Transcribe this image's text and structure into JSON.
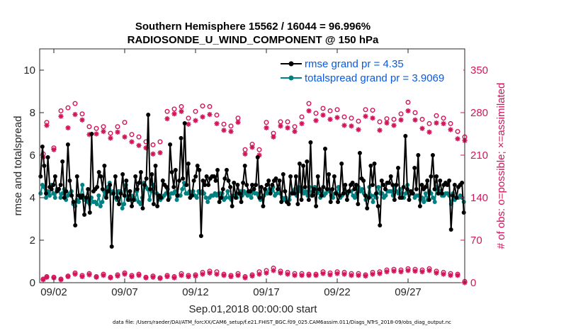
{
  "chart_data": {
    "type": "line",
    "title": "Southern Hemisphere 15562 / 16044 = 96.996%",
    "subtitle": "RADIOSONDE_U_WIND_COMPONENT @ 150 hPa",
    "xlabel": "Sep.01,2018 00:00:00 start",
    "ylabel": "rmse and totalspread",
    "y2label": "# of obs: o=possible; ×=assimilated",
    "footnote": "data file: /Users/raeder/DAI/ATM_forcXX/CAM6_setup/f.e21.FHIST_BGC.f09_025.CAM6assim.011/Diags_NTrS_2018-09/obs_diag_output.nc",
    "xlim": [
      1,
      31
    ],
    "ylim": [
      0,
      11
    ],
    "y2lim": [
      0,
      385
    ],
    "xticks": [
      2,
      7,
      12,
      17,
      22,
      27
    ],
    "xtick_labels": [
      "09/02",
      "09/07",
      "09/12",
      "09/17",
      "09/22",
      "09/27"
    ],
    "yticks": [
      0,
      2,
      4,
      6,
      8,
      10
    ],
    "ytick_labels": [
      "0",
      "2",
      "4",
      "6",
      "8",
      "10"
    ],
    "y2ticks": [
      0,
      70,
      140,
      210,
      280,
      350
    ],
    "y2tick_labels": [
      "0",
      "70",
      "140",
      "210",
      "280",
      "350"
    ],
    "legend_position": "top-right",
    "colors": {
      "rmse": "#000000",
      "spread": "#008080",
      "obs": "#d4145a"
    },
    "series": [
      {
        "name": "rmse grand pr = 4.35",
        "axis": "left",
        "values": [
          5.0,
          6.4,
          5.5,
          4.2,
          5.9,
          4.5,
          4.4,
          4.6,
          5.0,
          4.3,
          4.4,
          4.6,
          5.7,
          4.0,
          4.3,
          6.5,
          4.8,
          4.1,
          3.8,
          2.7,
          5.0,
          4.1,
          4.0,
          4.1,
          3.2,
          4.0,
          4.4,
          3.3,
          7.0,
          4.3,
          4.4,
          4.5,
          5.2,
          5.0,
          4.4,
          5.5,
          4.0,
          4.3,
          4.6,
          1.7,
          4.2,
          5.0,
          4.0,
          3.7,
          4.2,
          5.1,
          4.1,
          4.8,
          3.9,
          4.3,
          3.6,
          3.9,
          5.0,
          4.4,
          4.7,
          5.2,
          3.5,
          4.6,
          4.9,
          7.9,
          4.4,
          5.1,
          3.7,
          5.5,
          3.6,
          4.1,
          4.0,
          4.8,
          4.6,
          4.5,
          3.9,
          6.5,
          5.2,
          4.5,
          5.3,
          4.1,
          4.8,
          6.8,
          4.9,
          7.5,
          4.6,
          5.6,
          4.0,
          4.1,
          4.8,
          5.0,
          5.5,
          5.3,
          2.2,
          4.8,
          4.6,
          5.0,
          4.6,
          4.9,
          5.0,
          5.0,
          4.8,
          5.3,
          3.8,
          4.0,
          4.4,
          4.9,
          5.3,
          4.8,
          4.5,
          3.6,
          4.7,
          4.0,
          4.6,
          4.2,
          3.8,
          4.7,
          5.5,
          4.6,
          4.3,
          4.3,
          4.6,
          4.4,
          4.6,
          5.9,
          4.0,
          4.5,
          3.6,
          4.4,
          4.6,
          4.8,
          4.2,
          4.6,
          4.8,
          4.9,
          4.4,
          4.8,
          3.8,
          5.1,
          4.3,
          3.8,
          3.7,
          5.0,
          4.2,
          4.2,
          5.0,
          3.7,
          5.6,
          3.9,
          5.5,
          4.5,
          5.7,
          3.9,
          6.6,
          4.1,
          4.4,
          3.6,
          5.0,
          4.4,
          4.1,
          4.5,
          6.3,
          4.4,
          5.1,
          3.8,
          4.4,
          5.0,
          4.2,
          3.8,
          4.1,
          5.6,
          4.2,
          4.6,
          3.9,
          4.3,
          4.6,
          4.7,
          4.4,
          4.6,
          3.7,
          6.1,
          4.9,
          4.8,
          4.1,
          3.5,
          4.0,
          5.5,
          4.6,
          5.6,
          4.2,
          3.6,
          2.7,
          4.8,
          4.6,
          4.4,
          4.7,
          4.7,
          5.0,
          4.6,
          3.9,
          4.6,
          5.4,
          4.0,
          4.0,
          4.5,
          6.9,
          4.4,
          3.9,
          4.3,
          4.2,
          5.4,
          4.4,
          6.0,
          3.6,
          4.6,
          4.4,
          4.5,
          4.8,
          3.9,
          5.0,
          6.0,
          4.4,
          5.0,
          4.2,
          4.8,
          4.2,
          4.6,
          4.7,
          4.6,
          4.8,
          2.5,
          4.1,
          4.6,
          4.0,
          4.5,
          4.6,
          4.7,
          3.3
        ]
      },
      {
        "name": "totalspread grand pr = 3.9069",
        "axis": "left",
        "values": [
          4.2,
          4.6,
          4.5,
          4.0,
          4.3,
          4.1,
          4.6,
          4.2,
          4.0,
          4.4,
          4.4,
          4.0,
          4.2,
          4.4,
          3.9,
          4.1,
          4.2,
          4.3,
          3.7,
          3.6,
          3.9,
          3.8,
          4.1,
          4.6,
          3.9,
          3.9,
          3.8,
          3.7,
          4.0,
          3.8,
          3.8,
          3.7,
          4.1,
          3.6,
          3.8,
          4.3,
          4.1,
          4.5,
          4.7,
          4.2,
          4.3,
          4.0,
          3.9,
          4.3,
          4.3,
          3.5,
          3.7,
          4.6,
          4.0,
          3.9,
          4.1,
          4.0,
          3.9,
          4.3,
          3.8,
          3.7,
          4.0,
          4.7,
          4.5,
          4.4,
          3.9,
          4.3,
          4.6,
          4.5,
          4.2,
          4.0,
          3.9,
          4.0,
          4.1,
          4.2,
          4.4,
          4.0,
          4.2,
          4.2,
          4.3,
          3.9,
          4.1,
          4.1,
          4.4,
          4.7,
          4.2,
          4.2,
          4.3,
          4.2,
          4.3,
          4.1,
          4.0,
          4.3,
          4.2,
          4.3,
          4.2,
          4.0,
          3.8,
          4.0,
          4.1,
          4.1,
          4.2,
          4.1,
          4.2,
          4.2,
          4.2,
          3.9,
          4.0,
          4.3,
          4.0,
          3.9,
          4.1,
          4.1,
          4.0,
          4.2,
          4.3,
          4.1,
          4.3,
          4.2,
          4.1,
          4.2,
          4.0,
          4.3,
          4.2,
          4.2,
          4.1,
          3.9,
          4.0,
          4.1,
          4.3,
          4.2,
          4.4,
          4.3,
          4.5,
          4.1,
          4.2,
          4.4,
          4.2,
          4.0,
          3.9,
          4.0,
          3.8,
          3.9,
          4.2,
          4.3,
          4.4,
          4.1,
          4.5,
          4.3,
          4.4,
          4.2,
          4.3,
          4.1,
          4.5,
          4.1,
          4.3,
          4.5,
          4.2,
          4.3,
          4.0,
          4.3,
          4.1,
          4.2,
          4.4,
          4.3,
          4.1,
          4.0,
          4.2,
          4.2,
          4.5,
          4.0,
          4.1,
          4.2,
          4.3,
          4.2,
          4.3,
          4.3,
          4.1,
          4.0,
          4.2,
          4.5,
          4.3,
          4.4,
          4.2,
          3.9,
          4.0,
          4.5,
          4.1,
          3.8,
          4.1,
          4.0,
          4.5,
          4.2,
          4.2,
          4.0,
          4.1,
          4.3,
          4.3,
          4.3,
          4.1,
          4.5,
          4.3,
          4.2,
          4.4,
          4.2,
          4.0,
          4.2,
          4.6,
          4.2,
          4.2,
          4.2,
          4.0,
          4.1,
          4.1,
          3.9,
          4.0,
          3.8,
          4.2,
          3.9,
          4.3,
          4.2,
          4.0,
          3.8,
          4.5,
          4.2,
          4.3,
          4.1,
          4.1,
          4.2,
          4.2,
          4.1,
          3.7,
          4.2,
          3.9,
          4.0,
          4.0,
          4.1,
          4.0,
          3.8
        ]
      }
    ],
    "obs_days": [
      1.25,
      1.5,
      2.0,
      2.5,
      3.0,
      3.5,
      4.0,
      4.5,
      5.0,
      5.5,
      6.0,
      6.5,
      7.0,
      7.5,
      8.0,
      8.5,
      9.0,
      9.5,
      10.0,
      10.5,
      11.0,
      11.5,
      12.0,
      12.5,
      13.0,
      13.5,
      14.0,
      14.5,
      15.0,
      15.5,
      16.0,
      16.5,
      17.0,
      17.5,
      18.0,
      18.5,
      19.0,
      19.5,
      20.0,
      20.5,
      21.0,
      21.5,
      22.0,
      22.5,
      23.0,
      23.5,
      24.0,
      24.5,
      25.0,
      25.5,
      26.0,
      26.5,
      27.0,
      27.5,
      28.0,
      28.5,
      29.0,
      29.5,
      30.0,
      30.5,
      31.0
    ],
    "obs_possible_upper": [
      212,
      264,
      222,
      283,
      288,
      295,
      278,
      257,
      254,
      257,
      246,
      257,
      264,
      244,
      240,
      232,
      227,
      232,
      282,
      286,
      290,
      271,
      282,
      291,
      290,
      276,
      261,
      258,
      271,
      219,
      228,
      219,
      264,
      246,
      265,
      265,
      257,
      273,
      295,
      279,
      287,
      283,
      285,
      273,
      271,
      266,
      285,
      284,
      265,
      270,
      269,
      278,
      297,
      280,
      269,
      262,
      275,
      271,
      262,
      249,
      240
    ],
    "obs_assim_upper": [
      207,
      259,
      219,
      274,
      255,
      277,
      268,
      244,
      245,
      249,
      238,
      248,
      240,
      232,
      226,
      222,
      212,
      214,
      270,
      278,
      282,
      261,
      267,
      273,
      277,
      262,
      251,
      249,
      264,
      212,
      223,
      210,
      255,
      240,
      258,
      255,
      249,
      262,
      283,
      267,
      276,
      269,
      272,
      259,
      258,
      252,
      274,
      271,
      251,
      263,
      259,
      268,
      283,
      268,
      254,
      248,
      263,
      262,
      252,
      237,
      234
    ],
    "obs_possible_lower": [
      6,
      10,
      9,
      6,
      11,
      16,
      12,
      15,
      10,
      14,
      9,
      13,
      16,
      12,
      14,
      9,
      11,
      8,
      12,
      10,
      15,
      12,
      13,
      17,
      19,
      18,
      14,
      12,
      15,
      10,
      13,
      18,
      20,
      24,
      19,
      17,
      15,
      15,
      14,
      14,
      18,
      16,
      18,
      17,
      15,
      15,
      13,
      17,
      18,
      21,
      22,
      21,
      23,
      22,
      21,
      23,
      19,
      17,
      15,
      14,
      2
    ],
    "obs_assim_lower": [
      5,
      9,
      8,
      5,
      10,
      14,
      10,
      13,
      9,
      12,
      8,
      11,
      14,
      10,
      12,
      8,
      9,
      7,
      10,
      8,
      12,
      10,
      11,
      14,
      16,
      14,
      12,
      10,
      12,
      8,
      11,
      14,
      16,
      20,
      16,
      14,
      12,
      12,
      12,
      12,
      15,
      13,
      15,
      14,
      12,
      12,
      11,
      14,
      15,
      18,
      19,
      18,
      20,
      19,
      18,
      20,
      16,
      14,
      12,
      12,
      0
    ]
  }
}
